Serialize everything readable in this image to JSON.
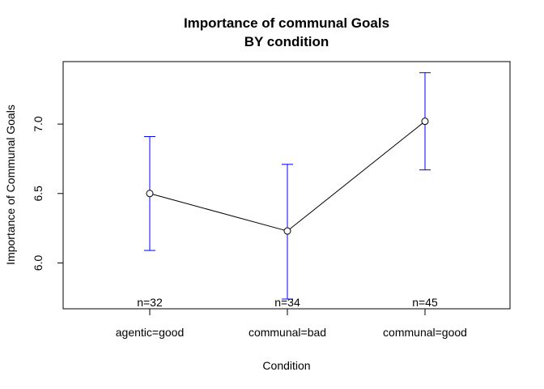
{
  "chart_data": {
    "type": "line",
    "title": "Importance of communal Goals",
    "subtitle": "BY condition",
    "xlabel": "Condition",
    "ylabel": "Importance of Communal Goals",
    "categories": [
      "agentic=good",
      "communal=bad",
      "communal=good"
    ],
    "values": [
      6.5,
      6.23,
      7.02
    ],
    "ci_lower": [
      6.09,
      5.74,
      6.67
    ],
    "ci_upper": [
      6.91,
      6.71,
      7.37
    ],
    "n_labels": [
      "n=32",
      "n=34",
      "n=45"
    ],
    "yticks": [
      6.0,
      6.5,
      7.0
    ],
    "ytick_labels": [
      "6.0",
      "6.5",
      "7.0"
    ],
    "ylim": [
      5.67,
      7.45
    ],
    "grid": false,
    "legend": "none",
    "colors": {
      "line": "#000000",
      "error_bars": "#0000ff",
      "points": "#000000"
    }
  }
}
